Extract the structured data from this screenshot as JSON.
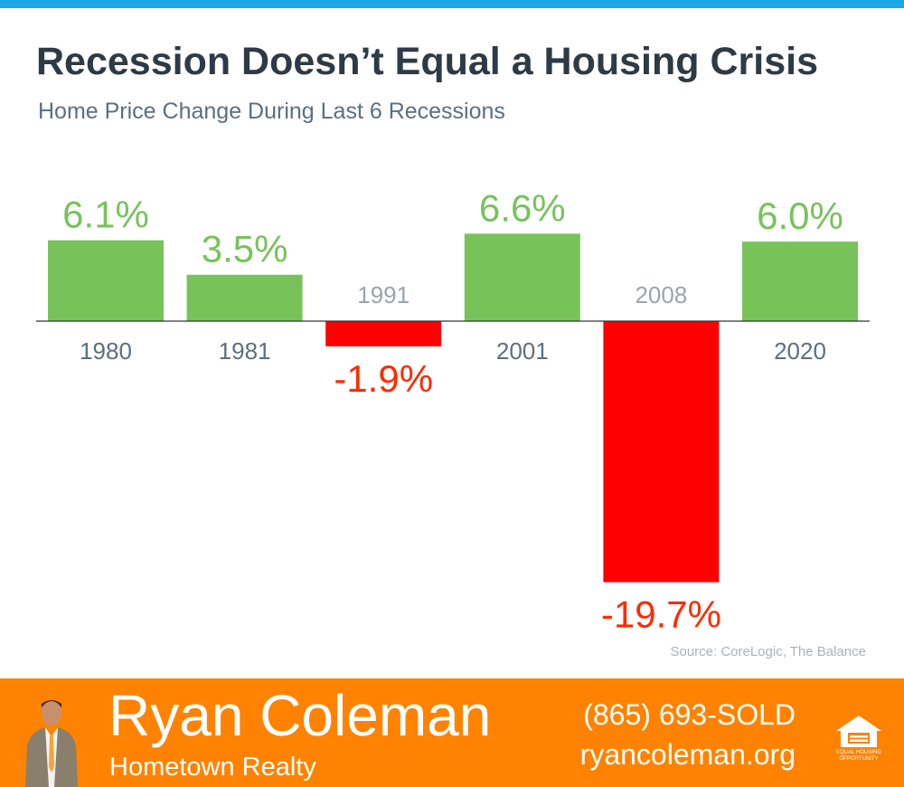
{
  "colors": {
    "top_bar": "#1ea7e8",
    "positive": "#77c35a",
    "negative": "#ff0000",
    "negative_label": "#ff2a00",
    "year_label": "#5b6f80",
    "footer": "#ff8200",
    "axis": "#333333"
  },
  "header": {
    "title": "Recession Doesn’t Equal a Housing Crisis",
    "subtitle": "Home Price Change During Last 6 Recessions"
  },
  "chart_data": {
    "type": "bar",
    "categories": [
      "1980",
      "1981",
      "1991",
      "2001",
      "2008",
      "2020"
    ],
    "values": [
      6.1,
      3.5,
      -1.9,
      6.6,
      -19.7,
      6.0
    ],
    "data_labels": [
      "6.1%",
      "3.5%",
      "-1.9%",
      "6.6%",
      "-19.7%",
      "6.0%"
    ],
    "ylim": [
      -19.7,
      6.6
    ],
    "grid": false,
    "legend": "none",
    "title": "Home Price Change During Last 6 Recessions"
  },
  "source": "Source: CoreLogic, The Balance",
  "footer": {
    "agent_name": "Ryan Coleman",
    "brokerage": "Hometown Realty",
    "phone": "(865) 693-SOLD",
    "website": "ryancoleman.org",
    "logo_text_line1": "EQUAL HOUSING",
    "logo_text_line2": "OPPORTUNITY"
  }
}
